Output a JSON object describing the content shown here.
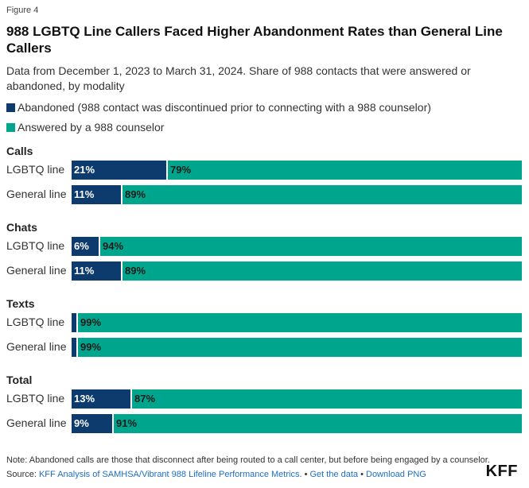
{
  "figure_label": "Figure 4",
  "title": "988 LGBTQ Line Callers Faced Higher Abandonment Rates than General Line Callers",
  "subtitle": "Data from December 1, 2023 to March 31, 2024. Share of 988 contacts that were answered or abandoned, by modality",
  "colors": {
    "abandoned": "#0d3b6e",
    "answered": "#00a58d"
  },
  "chart_data": {
    "type": "bar",
    "orientation": "horizontal",
    "stacked": true,
    "unit": "%",
    "xlim": [
      0,
      100
    ],
    "series": [
      {
        "name": "Abandoned (988 contact was discontinued prior to connecting with a 988 counselor)",
        "color": "#0d3b6e"
      },
      {
        "name": "Answered by a 988 counselor",
        "color": "#00a58d"
      }
    ],
    "groups": [
      {
        "name": "Calls",
        "rows": [
          {
            "label": "LGBTQ line",
            "abandoned": 21,
            "answered": 79,
            "abandoned_label": "21%",
            "answered_label": "79%"
          },
          {
            "label": "General line",
            "abandoned": 11,
            "answered": 89,
            "abandoned_label": "11%",
            "answered_label": "89%"
          }
        ]
      },
      {
        "name": "Chats",
        "rows": [
          {
            "label": "LGBTQ line",
            "abandoned": 6,
            "answered": 94,
            "abandoned_label": "6%",
            "answered_label": "94%"
          },
          {
            "label": "General line",
            "abandoned": 11,
            "answered": 89,
            "abandoned_label": "11%",
            "answered_label": "89%"
          }
        ]
      },
      {
        "name": "Texts",
        "rows": [
          {
            "label": "LGBTQ line",
            "abandoned": 1,
            "answered": 99,
            "abandoned_label": "",
            "answered_label": "99%"
          },
          {
            "label": "General line",
            "abandoned": 1,
            "answered": 99,
            "abandoned_label": "",
            "answered_label": "99%"
          }
        ]
      },
      {
        "name": "Total",
        "rows": [
          {
            "label": "LGBTQ line",
            "abandoned": 13,
            "answered": 87,
            "abandoned_label": "13%",
            "answered_label": "87%"
          },
          {
            "label": "General line",
            "abandoned": 9,
            "answered": 91,
            "abandoned_label": "9%",
            "answered_label": "91%"
          }
        ]
      }
    ]
  },
  "note": "Note: Abandoned calls are those that disconnect after being routed to a call center, but before being engaged by a counselor.",
  "source": {
    "prefix": "Source: ",
    "link_text": "KFF Analysis of SAMHSA/Vibrant 988 Lifeline Performance Metrics.",
    "sep1": " • ",
    "get_data": "Get the data",
    "sep2": " • ",
    "download": "Download PNG"
  },
  "logo": "KFF"
}
